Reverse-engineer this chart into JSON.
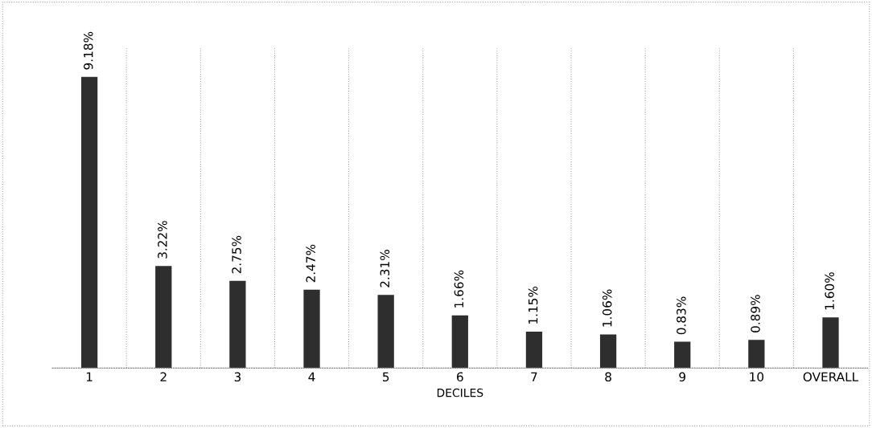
{
  "chart_data": {
    "type": "bar",
    "xlabel": "DECILES",
    "categories": [
      "1",
      "2",
      "3",
      "4",
      "5",
      "6",
      "7",
      "8",
      "9",
      "10",
      "OVERALL"
    ],
    "values": [
      9.18,
      3.22,
      2.75,
      2.47,
      2.31,
      1.66,
      1.15,
      1.06,
      0.83,
      0.89,
      1.6
    ],
    "value_labels": [
      "9.18%",
      "3.22%",
      "2.75%",
      "2.47%",
      "2.31%",
      "1.66%",
      "1.15%",
      "1.06%",
      "0.83%",
      "0.89%",
      "1.60%"
    ],
    "color": "#2e2e2e",
    "grid": "x",
    "legend": false
  }
}
